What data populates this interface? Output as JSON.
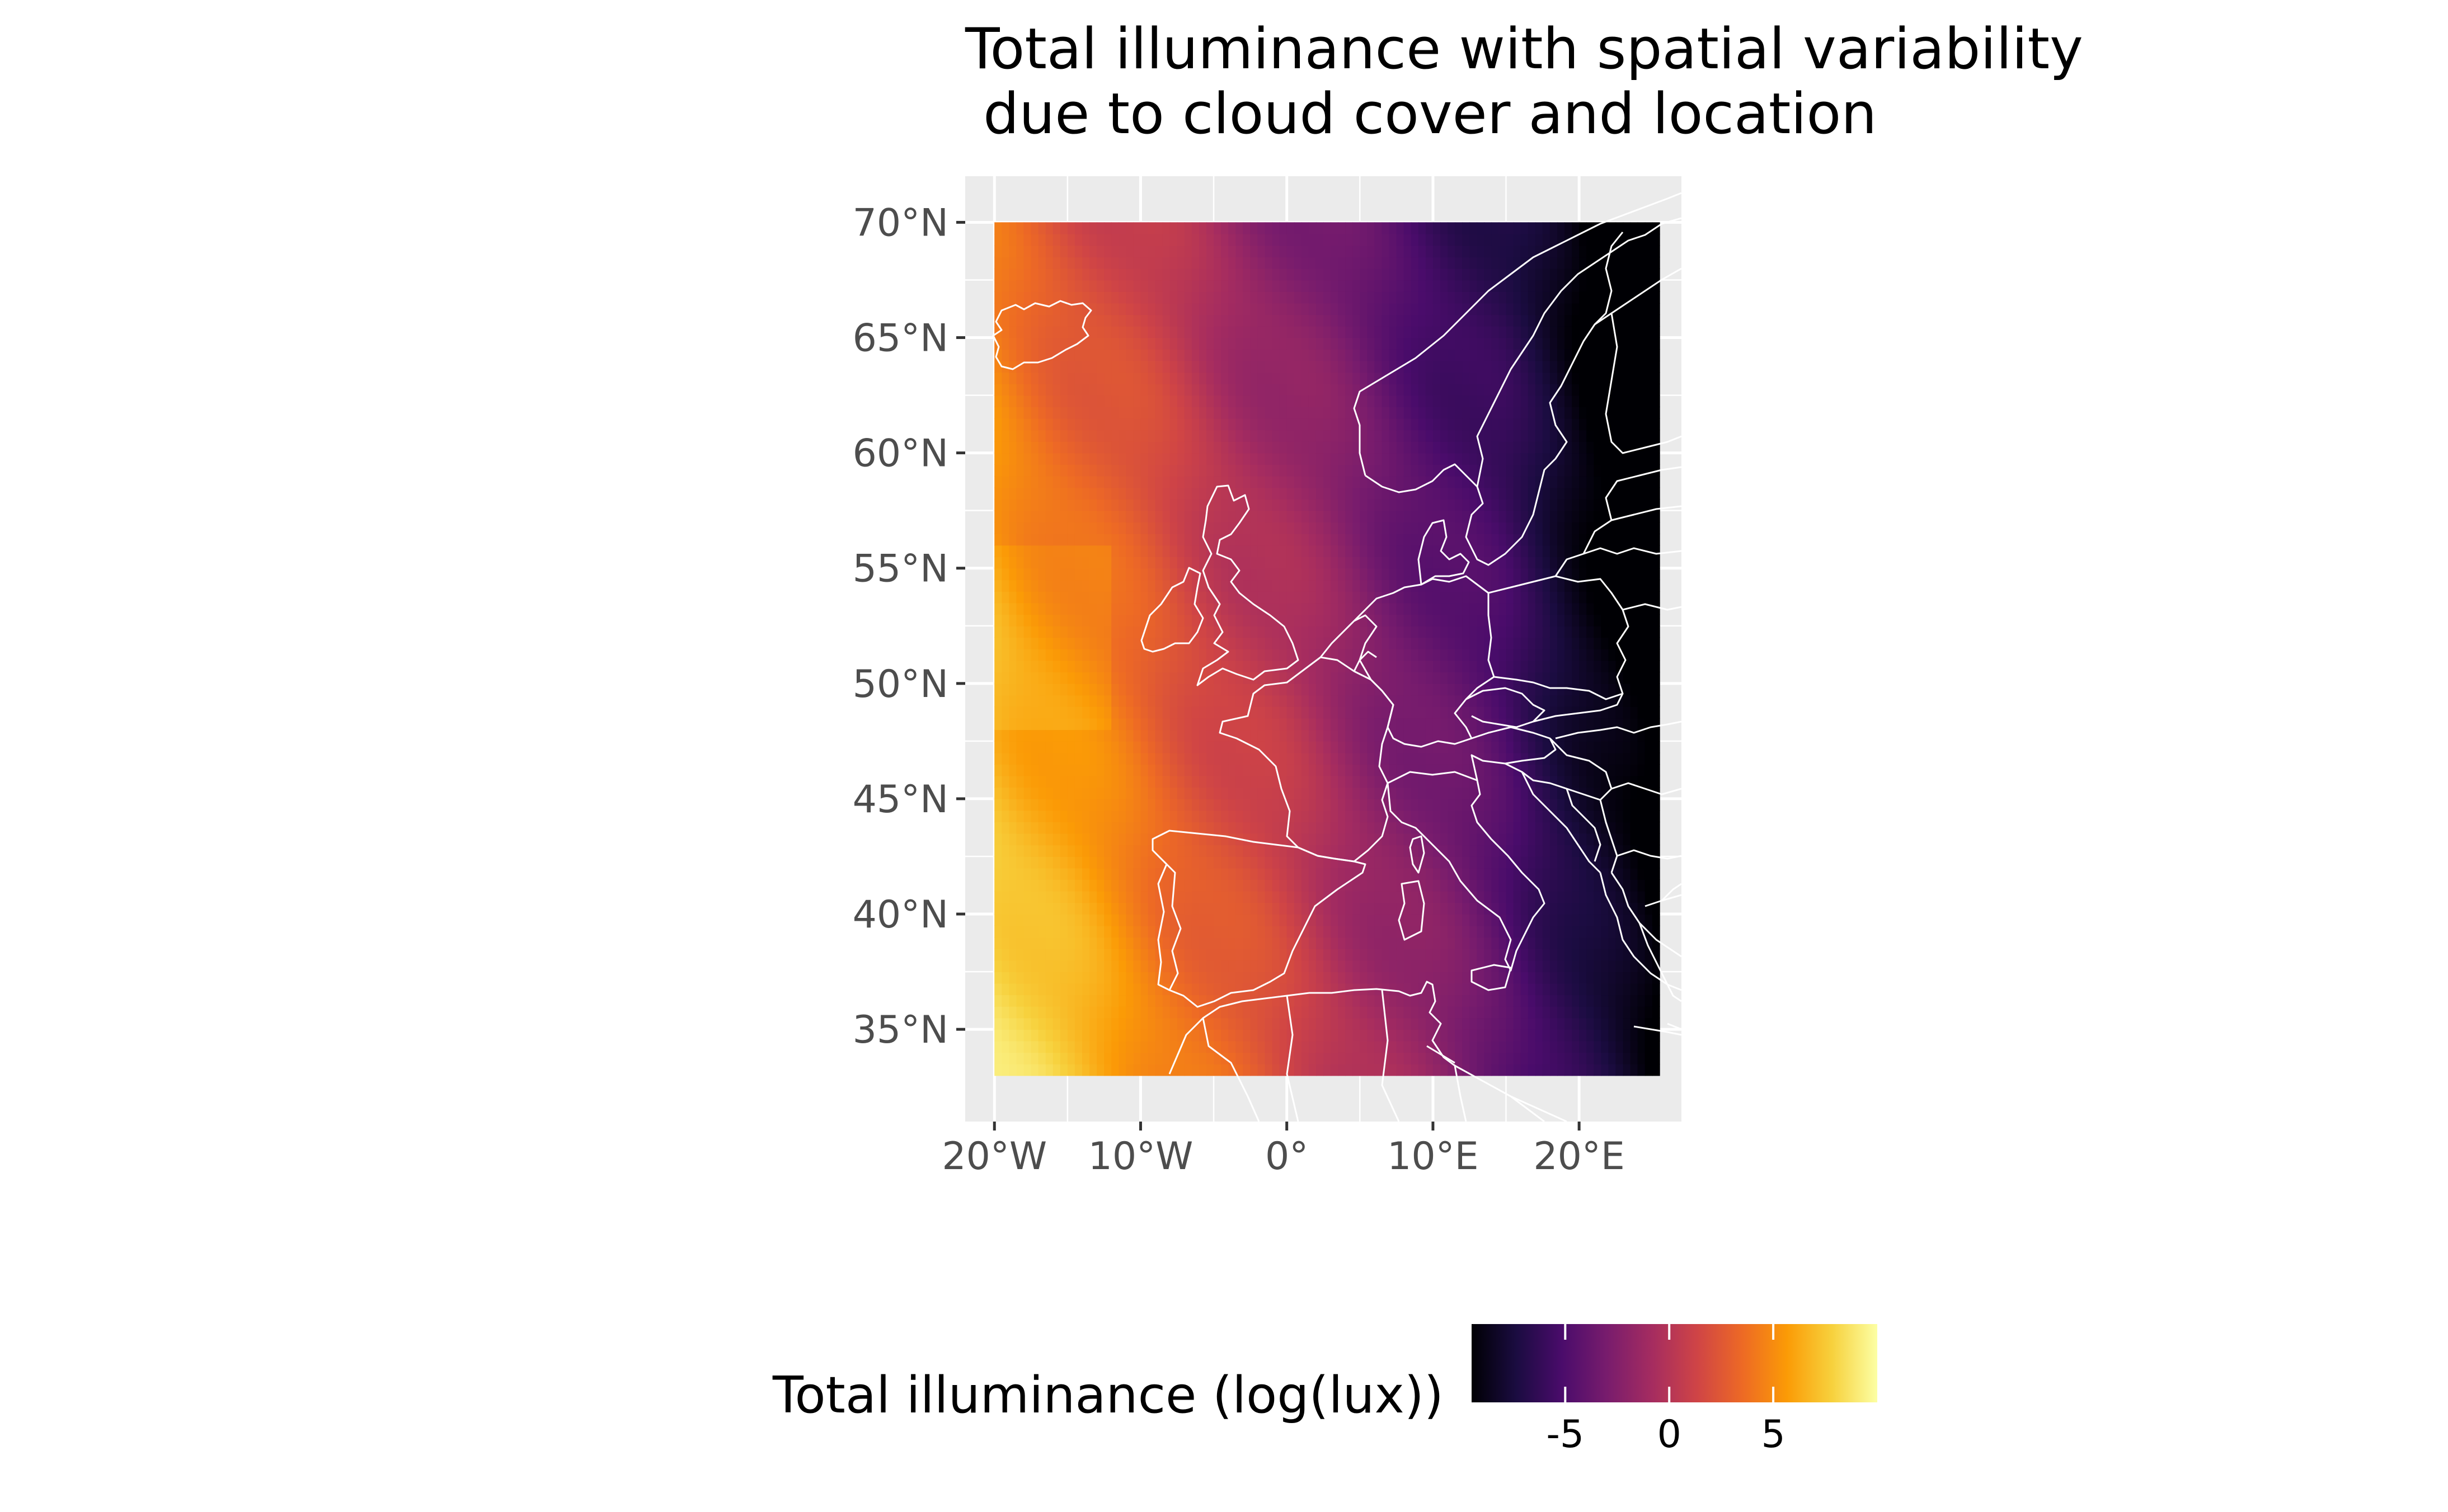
{
  "title": {
    "line1": "Total illuminance with spatial variability",
    "line2": " due to cloud cover and location"
  },
  "map": {
    "type": "raster-heatmap",
    "projection": "equirectangular",
    "panel_background": "#ebebeb",
    "gridlines": true,
    "country_borders_color": "#ffffff",
    "xlim_deg": [
      -22,
      27
    ],
    "ylim_deg": [
      31,
      72
    ],
    "raster_extent": {
      "lon": [
        -20,
        25.5
      ],
      "lat": [
        33,
        70
      ]
    },
    "x_ticks": [
      {
        "value": -20,
        "label": "20°W"
      },
      {
        "value": -10,
        "label": "10°W"
      },
      {
        "value": 0,
        "label": "0°"
      },
      {
        "value": 10,
        "label": "10°E"
      },
      {
        "value": 20,
        "label": "20°E"
      }
    ],
    "y_ticks": [
      {
        "value": 70,
        "label": "70°N"
      },
      {
        "value": 65,
        "label": "65°N"
      },
      {
        "value": 60,
        "label": "60°N"
      },
      {
        "value": 55,
        "label": "55°N"
      },
      {
        "value": 50,
        "label": "50°N"
      },
      {
        "value": 45,
        "label": "45°N"
      },
      {
        "value": 40,
        "label": "40°N"
      },
      {
        "value": 35,
        "label": "35°N"
      }
    ],
    "trend": "illuminance decreases from west/southwest (about 8-9 log(lux)) toward east/northeast (about -9 log(lux))"
  },
  "legend": {
    "title": "Total illuminance (log(lux))",
    "position": "bottom",
    "palette": "inferno",
    "range": [
      -9.5,
      10
    ],
    "colors": [
      "#000004",
      "#1b0c41",
      "#4a0c6b",
      "#781c6d",
      "#a52c60",
      "#cf4446",
      "#ed6925",
      "#fb9b06",
      "#f7d13d",
      "#fcffa4"
    ],
    "ticks": [
      {
        "value": -5,
        "label": "-5"
      },
      {
        "value": 0,
        "label": "0"
      },
      {
        "value": 5,
        "label": "5"
      }
    ]
  }
}
